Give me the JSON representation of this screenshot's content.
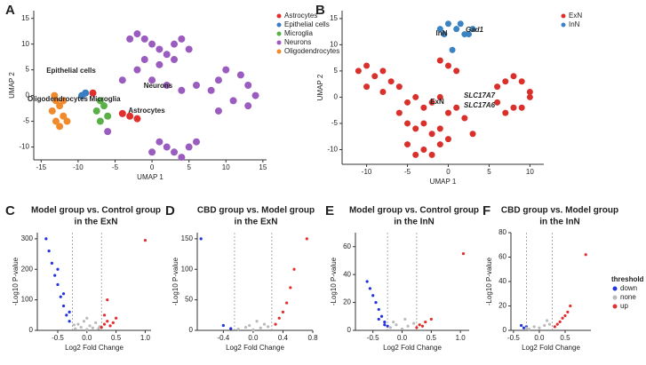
{
  "chart_data": [
    {
      "type": "scatter",
      "label": "A",
      "xlabel": "UMAP 1",
      "ylabel": "UMAP 2",
      "xlim": [
        -16,
        15.5
      ],
      "ylim": [
        -12.5,
        16.5
      ],
      "xticks": [
        -15,
        -10,
        -5,
        0,
        5,
        10,
        15
      ],
      "yticks": [
        -10,
        -5,
        0,
        5,
        10,
        15
      ],
      "grid": false,
      "legend_position": "right",
      "annotations": [
        "Epithelial cells",
        "Neurons",
        "Oligodendrocytes",
        "Microglia",
        "Astrocytes"
      ],
      "series": [
        {
          "name": "Astrocytes",
          "color": "#e0302e",
          "x": [
            -3,
            -2,
            -4,
            -8
          ],
          "y": [
            -4,
            -4.5,
            -3.5,
            0.5
          ]
        },
        {
          "name": "Epithelial cells",
          "color": "#3a7dc0",
          "x": [
            -9.5,
            -9
          ],
          "y": [
            0,
            0.5
          ]
        },
        {
          "name": "Microglia",
          "color": "#58b047",
          "x": [
            -7,
            -6.5,
            -7.5,
            -6,
            -7
          ],
          "y": [
            -1,
            -2,
            -3,
            -4,
            -5
          ]
        },
        {
          "name": "Neurons",
          "color": "#9b5cc0",
          "x": [
            -3,
            -2,
            -1,
            0,
            1,
            2,
            3,
            4,
            5,
            -1,
            1,
            3,
            -2,
            0,
            2,
            4,
            6,
            8,
            9,
            10,
            12,
            13,
            11,
            9,
            1,
            2,
            3,
            4,
            5,
            6,
            0,
            -4,
            -6,
            13,
            14
          ],
          "y": [
            11,
            12,
            11,
            10,
            9,
            8,
            10,
            11,
            9,
            7,
            6,
            7,
            5,
            3,
            2,
            1,
            2,
            1,
            3,
            5,
            4,
            2,
            -1,
            -3,
            -9,
            -10,
            -11,
            -12,
            -10,
            -9,
            -11,
            3,
            -7,
            -2,
            0
          ]
        },
        {
          "name": "Oligodendrocytes",
          "color": "#f08a2a",
          "x": [
            -13,
            -12.5,
            -13.5,
            -12,
            -13,
            -12.5,
            -11.5,
            -12,
            -13.2
          ],
          "y": [
            -1,
            -2,
            -3,
            -4,
            -5,
            -6,
            -5,
            -1,
            0
          ]
        }
      ]
    },
    {
      "type": "scatter",
      "label": "B",
      "xlabel": "UMAP 1",
      "ylabel": "UMAP 2",
      "xlim": [
        -13,
        11.7
      ],
      "ylim": [
        -12.8,
        16.5
      ],
      "xticks": [
        -10,
        -5,
        0,
        5,
        10
      ],
      "yticks": [
        -10,
        -5,
        0,
        5,
        10,
        15
      ],
      "grid": false,
      "legend_position": "right",
      "annotations": [
        "InN",
        "Gad1",
        "ExN",
        "SLC17A7",
        "SLC17A6"
      ],
      "series": [
        {
          "name": "ExN",
          "color": "#d9302c",
          "x": [
            -11,
            -10,
            -9,
            -8,
            -7,
            -10,
            -8,
            -6,
            -5,
            -4,
            -3,
            -2,
            -1,
            0,
            1,
            2,
            -5,
            -4,
            -3,
            -2,
            -1,
            0,
            -5,
            -3,
            -1,
            -4,
            -2,
            6,
            7,
            8,
            9,
            10,
            6,
            8,
            10,
            7,
            9,
            -1,
            0,
            1,
            -6,
            3
          ],
          "y": [
            5,
            6,
            4,
            5,
            3,
            2,
            1,
            2,
            -1,
            0,
            -2,
            -1,
            0,
            -3,
            -2,
            -4,
            -5,
            -6,
            -5,
            -7,
            -6,
            -8,
            -9,
            -10,
            -9,
            -11,
            -11,
            2,
            3,
            4,
            3,
            1,
            -1,
            -2,
            0,
            -3,
            -2,
            7,
            6,
            5,
            -3,
            -7
          ]
        },
        {
          "name": "InN",
          "color": "#3a84c4",
          "x": [
            -1,
            0,
            1,
            2,
            3,
            -0.5,
            1.5,
            2.5,
            0.5
          ],
          "y": [
            13,
            14,
            13,
            12,
            13,
            12,
            14,
            12,
            9
          ]
        }
      ]
    },
    {
      "type": "scatter",
      "label": "C",
      "title": [
        "Model group vs. Control group",
        "in the ExN"
      ],
      "xlabel": "Log2 Fold Change",
      "ylabel": "-Log10 P-value",
      "xlim": [
        -0.85,
        1.1
      ],
      "ylim": [
        0,
        320
      ],
      "xticks": [
        -0.5,
        {
          "value": 0,
          "label": "0.0"
        },
        0.5,
        {
          "value": 1,
          "label": "1.0"
        }
      ],
      "yticks": [
        0,
        100,
        200,
        300
      ],
      "vlines": [
        -0.25,
        0.25
      ],
      "grid": false,
      "series": [
        {
          "color": "#bbbbbb",
          "x": [
            -0.2,
            -0.1,
            0,
            0.1,
            0.2,
            -0.15,
            0.05,
            0.15,
            -0.05,
            0.22,
            -0.22,
            0
          ],
          "y": [
            5,
            10,
            3,
            8,
            6,
            20,
            15,
            25,
            30,
            12,
            18,
            40
          ]
        },
        {
          "color": "#2233dd",
          "x": [
            -0.3,
            -0.35,
            -0.4,
            -0.45,
            -0.5,
            -0.55,
            -0.6,
            -0.65,
            -0.4,
            -0.5,
            -0.7,
            -0.3
          ],
          "y": [
            30,
            50,
            80,
            110,
            150,
            180,
            220,
            260,
            120,
            200,
            300,
            60
          ]
        },
        {
          "color": "#e03030",
          "x": [
            0.25,
            0.3,
            0.35,
            0.4,
            0.45,
            0.3,
            0.5,
            0.35,
            1.0
          ],
          "y": [
            10,
            20,
            30,
            15,
            25,
            50,
            40,
            100,
            295
          ]
        }
      ]
    },
    {
      "type": "scatter",
      "label": "D",
      "title": [
        "CBD group vs. Model group",
        "in the ExN"
      ],
      "xlabel": "Log2 Fold Change",
      "ylabel": "-Log10 P-value",
      "xlim": [
        -0.75,
        0.8
      ],
      "ylim": [
        0,
        160
      ],
      "xticks": [
        -0.4,
        {
          "value": 0,
          "label": "0.0"
        },
        0.4,
        0.8
      ],
      "yticks": [
        0,
        50,
        100,
        150
      ],
      "vlines": [
        -0.25,
        0.25
      ],
      "grid": false,
      "series": [
        {
          "color": "#bbbbbb",
          "x": [
            -0.2,
            -0.1,
            0,
            0.1,
            0.2,
            -0.3,
            0.15,
            0.05,
            -0.05
          ],
          "y": [
            2,
            5,
            1,
            4,
            6,
            3,
            10,
            15,
            8
          ]
        },
        {
          "color": "#2233dd",
          "x": [
            -0.4,
            -0.7,
            -0.3
          ],
          "y": [
            8,
            150,
            3
          ]
        },
        {
          "color": "#e03030",
          "x": [
            0.3,
            0.35,
            0.4,
            0.45,
            0.5,
            0.55,
            0.72
          ],
          "y": [
            10,
            20,
            30,
            45,
            70,
            100,
            150
          ]
        }
      ]
    },
    {
      "type": "scatter",
      "label": "E",
      "title": [
        "Model group vs. Control group",
        "in the InN"
      ],
      "xlabel": "Log2 Fold Change",
      "ylabel": "-Log10 P-value",
      "xlim": [
        -0.8,
        1.15
      ],
      "ylim": [
        0,
        70
      ],
      "xticks": [
        -0.5,
        {
          "value": 0,
          "label": "0.0"
        },
        0.5,
        {
          "value": 1,
          "label": "1.0"
        }
      ],
      "yticks": [
        0,
        20,
        40,
        60
      ],
      "vlines": [
        -0.25,
        0.25
      ],
      "grid": false,
      "series": [
        {
          "color": "#bbbbbb",
          "x": [
            -0.2,
            -0.1,
            0,
            0.1,
            0.2,
            -0.15,
            0.05
          ],
          "y": [
            2,
            4,
            1,
            3,
            5,
            6,
            8
          ]
        },
        {
          "color": "#2233dd",
          "x": [
            -0.25,
            -0.3,
            -0.35,
            -0.4,
            -0.45,
            -0.5,
            -0.55,
            -0.6,
            -0.3,
            -0.4
          ],
          "y": [
            3,
            6,
            10,
            15,
            20,
            25,
            30,
            35,
            4,
            8
          ]
        },
        {
          "color": "#e03030",
          "x": [
            0.25,
            0.3,
            0.35,
            0.4,
            0.5,
            1.05
          ],
          "y": [
            2,
            4,
            3,
            6,
            8,
            55
          ]
        }
      ]
    },
    {
      "type": "scatter",
      "label": "F",
      "title": [
        "CBD group vs. Model group",
        "in the InN"
      ],
      "xlabel": "Log2 Fold Change",
      "ylabel": "-Log10 P-value",
      "xlim": [
        -0.55,
        1.0
      ],
      "ylim": [
        0,
        80
      ],
      "xticks": [
        -0.5,
        {
          "value": 0,
          "label": "0.0"
        },
        0.5
      ],
      "yticks": [
        0,
        20,
        40,
        60,
        80
      ],
      "vlines": [
        -0.25,
        0.25
      ],
      "grid": false,
      "legend_title": "threshold",
      "legend_position": "right",
      "series": [
        {
          "name": "down",
          "color": "#2233dd",
          "x": [
            -0.3,
            -0.35,
            -0.25
          ],
          "y": [
            2,
            4,
            3
          ]
        },
        {
          "name": "none",
          "color": "#bbbbbb",
          "x": [
            -0.2,
            -0.1,
            0,
            0.1,
            0.2,
            -0.25,
            0.15
          ],
          "y": [
            1,
            3,
            2,
            4,
            5,
            2,
            8
          ]
        },
        {
          "name": "up",
          "color": "#e03030",
          "x": [
            0.3,
            0.35,
            0.4,
            0.45,
            0.5,
            0.55,
            0.6,
            0.9
          ],
          "y": [
            3,
            5,
            7,
            10,
            12,
            15,
            20,
            62
          ]
        }
      ]
    }
  ]
}
